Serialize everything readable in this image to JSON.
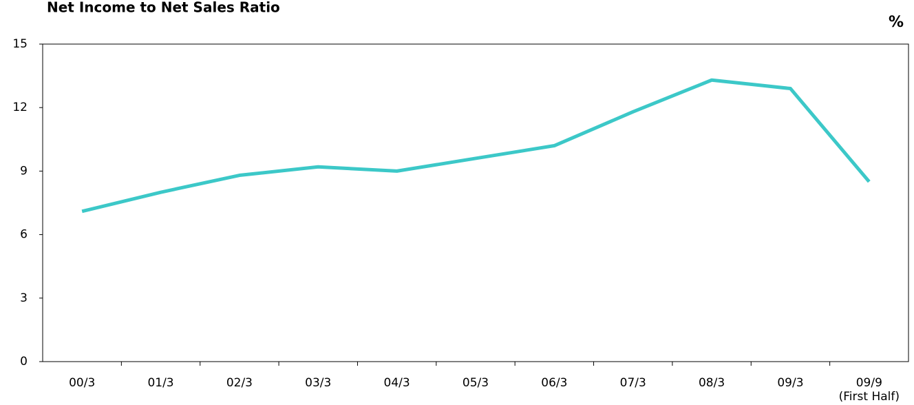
{
  "chart_data": {
    "type": "line",
    "title": "Net Income to Net Sales Ratio",
    "y_unit": "%",
    "categories": [
      "00/3",
      "01/3",
      "02/3",
      "03/3",
      "04/3",
      "05/3",
      "06/3",
      "07/3",
      "08/3",
      "09/3",
      "09/9\n(First Half)"
    ],
    "series": [
      {
        "name": "Net Income to Net Sales Ratio",
        "color": "#3cc8c8",
        "values": [
          7.1,
          8.0,
          8.8,
          9.2,
          9.0,
          9.6,
          10.2,
          11.8,
          13.3,
          12.9,
          8.5
        ]
      }
    ],
    "ylim": [
      0,
      15
    ],
    "yticks": [
      0,
      3,
      6,
      9,
      12,
      15
    ],
    "grid": false
  }
}
